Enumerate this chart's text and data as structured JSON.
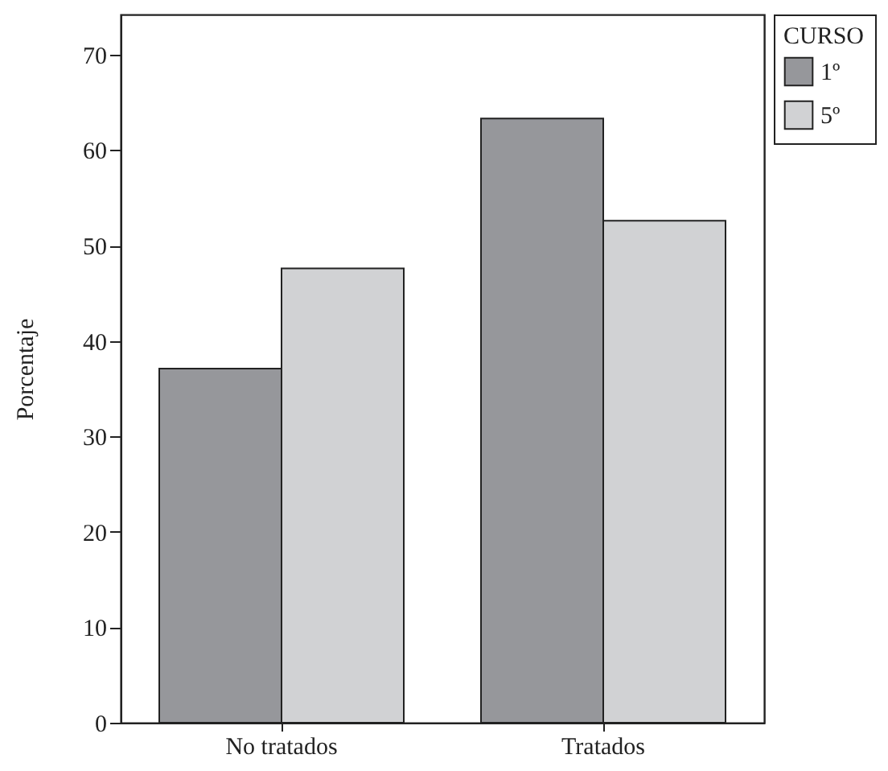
{
  "chart_data": {
    "type": "bar",
    "categories": [
      "No tratados",
      "Tratados"
    ],
    "ylabel": "Porcentaje",
    "legend_title": "CURSO",
    "legend": "top right",
    "grid": false,
    "series": [
      {
        "name": "1º",
        "color": "#96979b",
        "values": [
          37.1,
          63.3
        ]
      },
      {
        "name": "5º",
        "color": "#d1d2d4",
        "values": [
          47.6,
          52.6
        ]
      }
    ],
    "ylim": [
      0,
      74.2
    ],
    "yticks": [
      0,
      10,
      20,
      30,
      40,
      50,
      60,
      70
    ]
  }
}
